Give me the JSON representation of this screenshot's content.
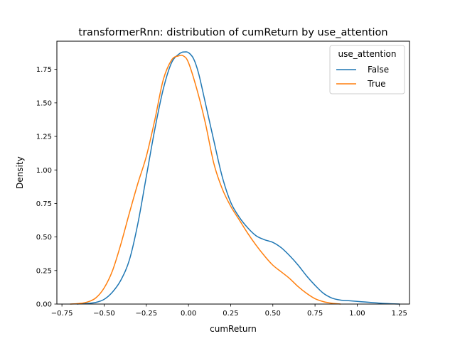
{
  "chart_data": {
    "type": "line",
    "title": "transformerRnn: distribution of cumReturn by use_attention",
    "xlabel": "cumReturn",
    "ylabel": "Density",
    "xlim": [
      -0.78,
      1.31
    ],
    "ylim": [
      0,
      1.96
    ],
    "xticks": [
      -0.75,
      -0.5,
      -0.25,
      0.0,
      0.25,
      0.5,
      0.75,
      1.0,
      1.25
    ],
    "xtick_labels": [
      "−0.75",
      "−0.50",
      "−0.25",
      "0.00",
      "0.25",
      "0.50",
      "0.75",
      "1.00",
      "1.25"
    ],
    "yticks": [
      0.0,
      0.25,
      0.5,
      0.75,
      1.0,
      1.25,
      1.5,
      1.75
    ],
    "ytick_labels": [
      "0.00",
      "0.25",
      "0.50",
      "0.75",
      "1.00",
      "1.25",
      "1.50",
      "1.75"
    ],
    "grid": false,
    "legend": {
      "title": "use_attention",
      "placement": "top-right"
    },
    "series": [
      {
        "name": "False",
        "color": "#1f77b4",
        "x": [
          -0.66,
          -0.6,
          -0.55,
          -0.5,
          -0.45,
          -0.4,
          -0.35,
          -0.3,
          -0.25,
          -0.2,
          -0.15,
          -0.1,
          -0.05,
          -0.02,
          0.0,
          0.03,
          0.06,
          0.1,
          0.15,
          0.2,
          0.25,
          0.3,
          0.35,
          0.4,
          0.45,
          0.5,
          0.55,
          0.6,
          0.65,
          0.7,
          0.75,
          0.8,
          0.85,
          0.9,
          0.95,
          1.0,
          1.05,
          1.1,
          1.15,
          1.2,
          1.25
        ],
        "y": [
          0.0,
          0.005,
          0.012,
          0.035,
          0.09,
          0.18,
          0.33,
          0.6,
          0.95,
          1.3,
          1.6,
          1.8,
          1.87,
          1.88,
          1.875,
          1.83,
          1.72,
          1.5,
          1.22,
          0.95,
          0.76,
          0.65,
          0.57,
          0.51,
          0.48,
          0.46,
          0.42,
          0.36,
          0.29,
          0.21,
          0.14,
          0.08,
          0.045,
          0.03,
          0.025,
          0.02,
          0.015,
          0.01,
          0.005,
          0.002,
          0.0
        ]
      },
      {
        "name": "True",
        "color": "#ff7f0e",
        "x": [
          -0.7,
          -0.65,
          -0.6,
          -0.55,
          -0.5,
          -0.45,
          -0.4,
          -0.35,
          -0.3,
          -0.25,
          -0.2,
          -0.15,
          -0.1,
          -0.06,
          -0.03,
          0.0,
          0.05,
          0.1,
          0.15,
          0.2,
          0.25,
          0.3,
          0.35,
          0.4,
          0.45,
          0.5,
          0.55,
          0.6,
          0.65,
          0.7,
          0.75,
          0.8,
          0.85,
          0.9
        ],
        "y": [
          0.0,
          0.004,
          0.015,
          0.045,
          0.12,
          0.25,
          0.45,
          0.68,
          0.9,
          1.1,
          1.37,
          1.67,
          1.82,
          1.85,
          1.85,
          1.8,
          1.6,
          1.35,
          1.05,
          0.86,
          0.73,
          0.63,
          0.53,
          0.44,
          0.36,
          0.29,
          0.24,
          0.19,
          0.13,
          0.08,
          0.04,
          0.018,
          0.006,
          0.0
        ]
      }
    ]
  }
}
